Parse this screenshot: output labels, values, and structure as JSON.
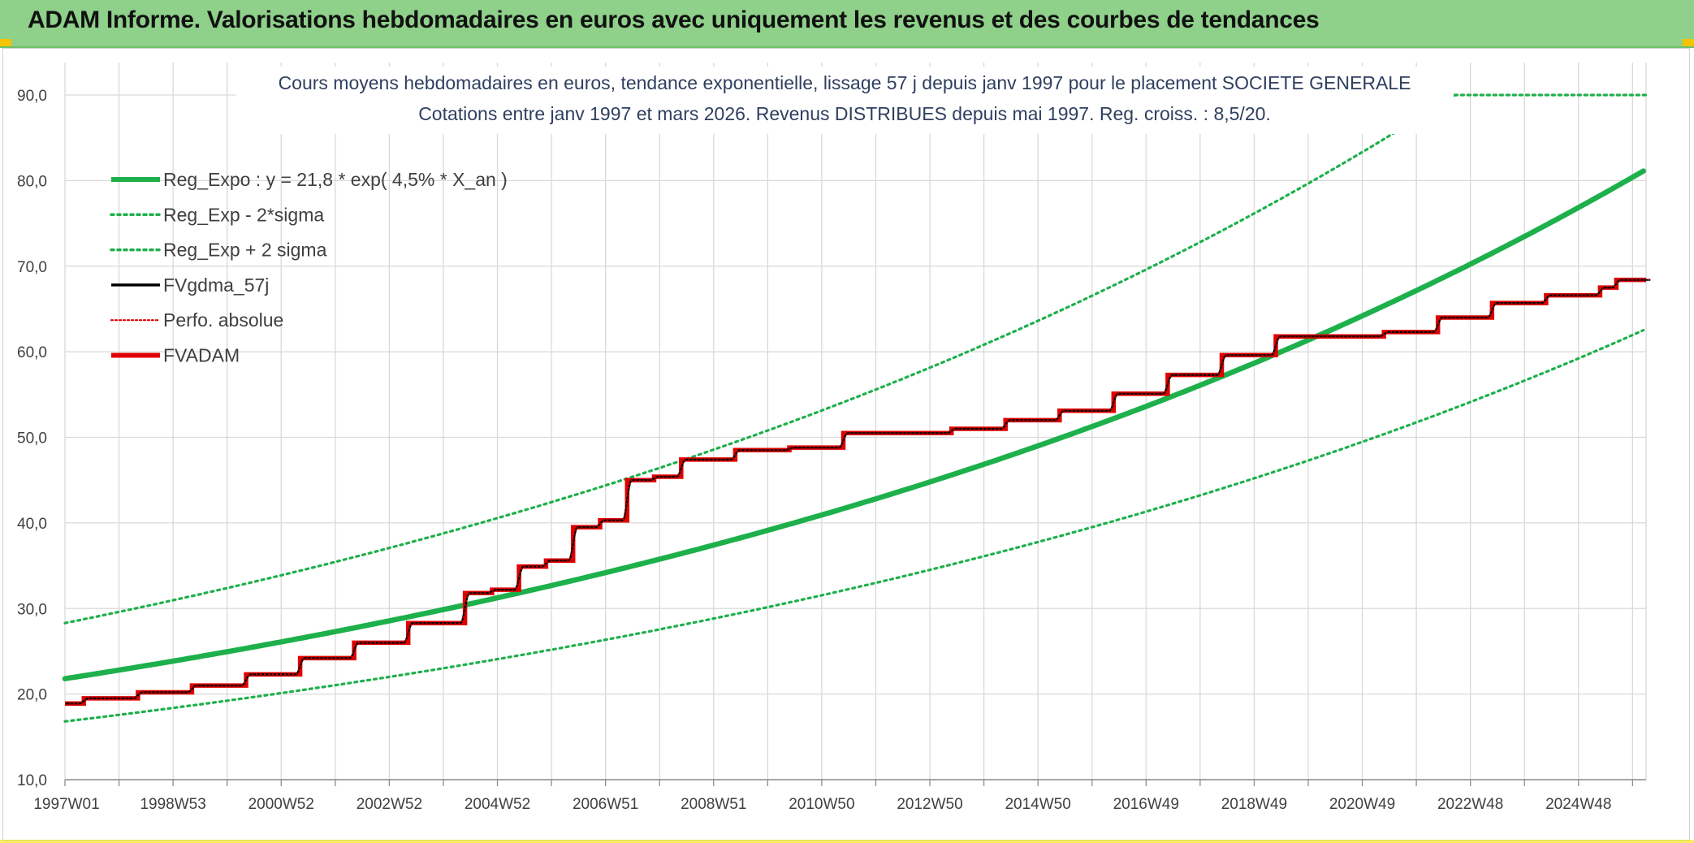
{
  "header": {
    "title": "ADAM Informe. Valorisations hebdomadaires en euros avec uniquement les revenus et des courbes de tendances"
  },
  "chart_data": {
    "type": "line",
    "title_lines": [
      "Cours moyens hebdomadaires en euros, tendance exponentielle, lissage 57 j depuis janv 1997 pour le placement SOCIETE GENERALE",
      "Cotations entre janv 1997 et mars 2026. Revenus DISTRIBUES depuis mai 1997. Reg. croiss. : 8,5/20."
    ],
    "xlabel": "",
    "ylabel": "",
    "ylim": [
      10,
      90
    ],
    "y_ticks": [
      "10,0",
      "20,0",
      "30,0",
      "40,0",
      "50,0",
      "60,0",
      "70,0",
      "80,0",
      "90,0"
    ],
    "x_range_years": [
      1997.0,
      2026.25
    ],
    "x_tick_labels": [
      "1997W01",
      "1998W53",
      "2000W52",
      "2002W52",
      "2004W52",
      "2006W51",
      "2008W51",
      "2010W50",
      "2012W50",
      "2014W50",
      "2016W49",
      "2018W49",
      "2020W49",
      "2022W48",
      "2024W48"
    ],
    "grid": true,
    "legend_position": "top-left",
    "series": [
      {
        "name": "Reg_Expo : y = 21,8 * exp( 4,5% *  X_an )",
        "color": "#1db04b",
        "style": "solid-thick",
        "formula": {
          "a": 21.8,
          "r": 0.045
        }
      },
      {
        "name": "Reg_Exp - 2*sigma",
        "color": "#1db04b",
        "style": "dotted",
        "formula": {
          "a": 16.8,
          "r": 0.045
        }
      },
      {
        "name": "Reg_Exp + 2 sigma",
        "color": "#1db04b",
        "style": "dotted",
        "formula": {
          "a": 28.3,
          "r": 0.045
        }
      },
      {
        "name": "FVgdma_57j",
        "color": "#000000",
        "style": "solid"
      },
      {
        "name": "Perfo. absolue",
        "color": "#e00000",
        "style": "dotted"
      },
      {
        "name": "FVADAM",
        "color": "#e00000",
        "style": "solid-thick",
        "steps": [
          [
            1997.0,
            18.9
          ],
          [
            1997.35,
            19.5
          ],
          [
            1998.35,
            20.2
          ],
          [
            1999.35,
            21.0
          ],
          [
            2000.35,
            22.3
          ],
          [
            2001.35,
            24.2
          ],
          [
            2002.35,
            26.0
          ],
          [
            2003.35,
            28.3
          ],
          [
            2004.4,
            31.8
          ],
          [
            2004.9,
            32.2
          ],
          [
            2005.4,
            34.9
          ],
          [
            2005.9,
            35.6
          ],
          [
            2006.4,
            39.5
          ],
          [
            2006.9,
            40.3
          ],
          [
            2007.4,
            45.0
          ],
          [
            2007.9,
            45.4
          ],
          [
            2008.4,
            47.4
          ],
          [
            2009.4,
            48.5
          ],
          [
            2010.4,
            48.8
          ],
          [
            2011.4,
            50.5
          ],
          [
            2013.4,
            51.0
          ],
          [
            2014.4,
            52.0
          ],
          [
            2015.4,
            53.1
          ],
          [
            2016.4,
            55.1
          ],
          [
            2017.4,
            57.3
          ],
          [
            2018.4,
            59.6
          ],
          [
            2019.4,
            61.8
          ],
          [
            2021.4,
            62.3
          ],
          [
            2022.4,
            64.0
          ],
          [
            2023.4,
            65.7
          ],
          [
            2024.4,
            66.6
          ],
          [
            2025.4,
            67.5
          ],
          [
            2025.7,
            68.4
          ],
          [
            2026.25,
            68.4
          ]
        ]
      }
    ]
  }
}
